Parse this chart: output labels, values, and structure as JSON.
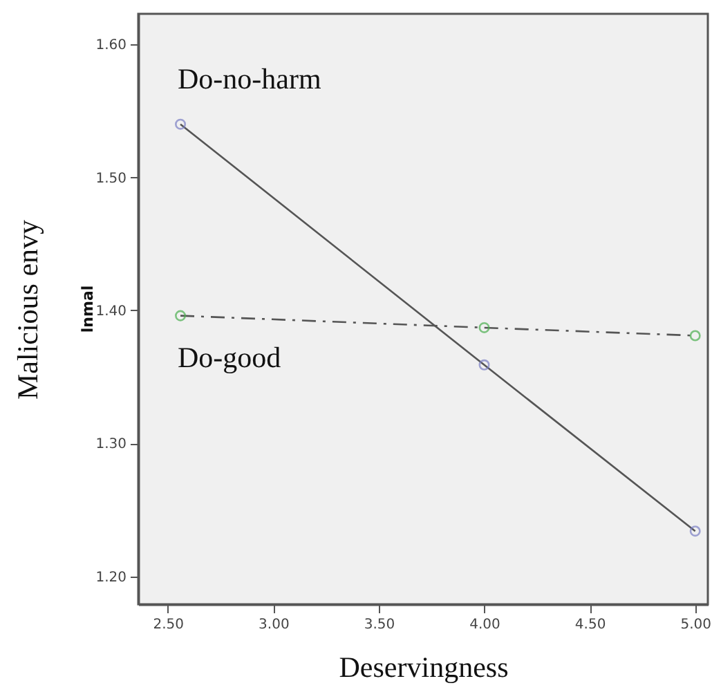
{
  "chart_data": {
    "type": "line",
    "xlabel": "Deservingness",
    "ylabel": "Malicious envy",
    "annotations": [
      "lnmal"
    ],
    "x": [
      2.56,
      4.0,
      5.0
    ],
    "series": [
      {
        "name": "Do-no-harm",
        "color": "#7b7fc4",
        "values": [
          1.54,
          1.359,
          1.234
        ],
        "line_style": "solid"
      },
      {
        "name": "Do-good",
        "color": "#4caf50",
        "values": [
          1.396,
          1.387,
          1.381
        ],
        "line_style": "dashed"
      }
    ],
    "xlim": [
      2.36,
      5.06
    ],
    "ylim": [
      1.179,
      1.623
    ],
    "xticks": [
      {
        "value": 2.5,
        "label": "2.50"
      },
      {
        "value": 3.0,
        "label": "3.00"
      },
      {
        "value": 3.5,
        "label": "3.50"
      },
      {
        "value": 4.0,
        "label": "4.00"
      },
      {
        "value": 4.5,
        "label": "4.50"
      },
      {
        "value": 5.0,
        "label": "5.00"
      }
    ],
    "yticks": [
      {
        "value": 1.2,
        "label": "1.20"
      },
      {
        "value": 1.3,
        "label": "1.30"
      },
      {
        "value": 1.4,
        "label": "1.40"
      },
      {
        "value": 1.5,
        "label": "1.50"
      },
      {
        "value": 1.6,
        "label": "1.60"
      }
    ],
    "grid": false,
    "marker": "circle"
  }
}
